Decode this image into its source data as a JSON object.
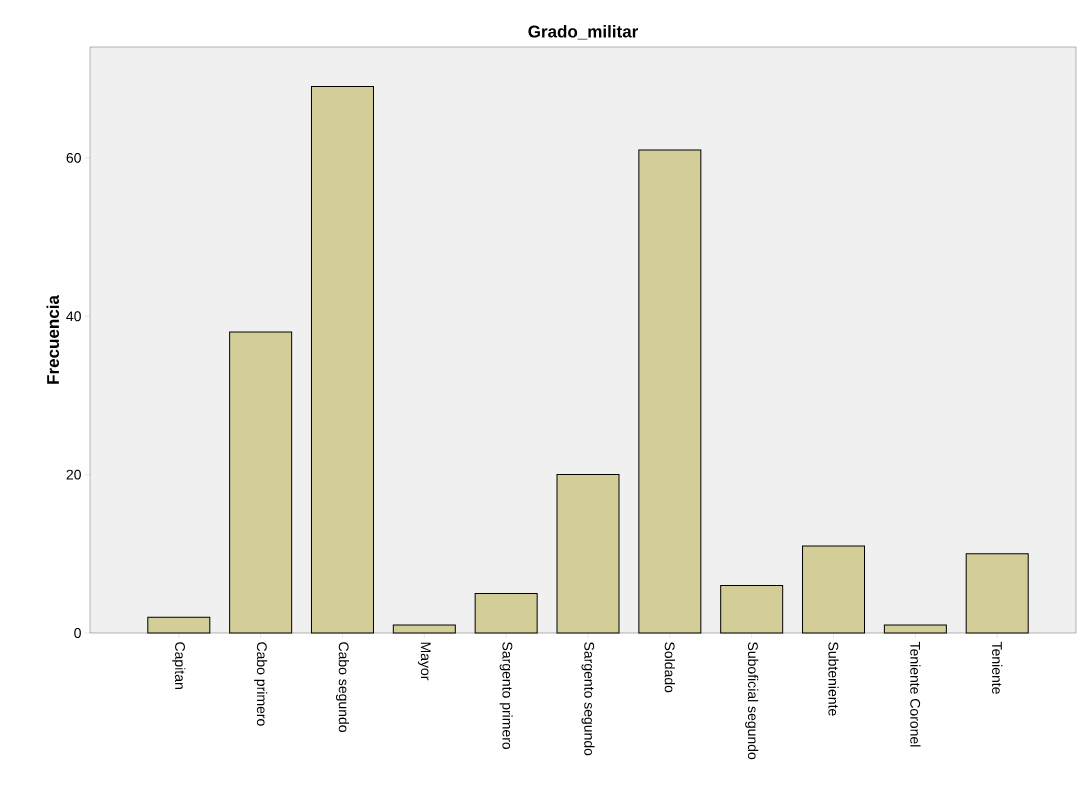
{
  "chart_data": {
    "type": "bar",
    "title": "Grado_militar",
    "ylabel": "Frecuencia",
    "categories": [
      "Capitan",
      "Cabo primero",
      "Cabo segundo",
      "Mayor",
      "Sargento primero",
      "Sargento segundo",
      "Soldado",
      "Suboficial segundo",
      "Subteniente",
      "Teniente Coronel",
      "Teniente"
    ],
    "values": [
      2,
      38,
      69,
      1,
      5,
      20,
      61,
      6,
      11,
      1,
      10
    ],
    "color": "#d3ce97",
    "ylim": [
      0,
      74
    ],
    "yticks": [
      0,
      20,
      40,
      60
    ],
    "grid": false
  }
}
